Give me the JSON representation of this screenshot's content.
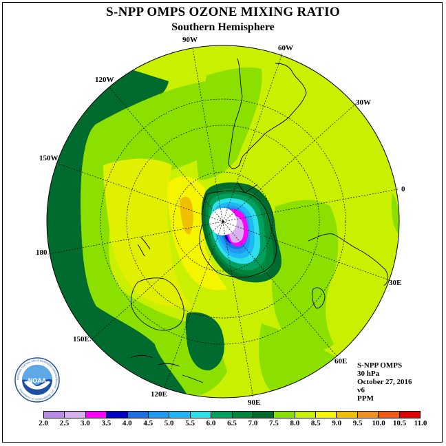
{
  "header": {
    "title": "S-NPP OMPS OZONE MIXING RATIO",
    "subtitle": "Southern Hemisphere"
  },
  "map": {
    "projection": "polar-stereographic-south",
    "longitude_labels": [
      "90W",
      "60W",
      "30W",
      "0",
      "30E",
      "60E",
      "90E",
      "120E",
      "150E",
      "180",
      "150W",
      "120W"
    ]
  },
  "info": {
    "instrument": "S-NPP OMPS",
    "level": "30 hPa",
    "date": "October 27, 2016",
    "version": "v6",
    "units": "PPM"
  },
  "logo": {
    "text": "NOAA",
    "ring_text": "NATIONAL OCEANIC AND ATMOSPHERIC ADMINISTRATION · U.S. DEPARTMENT OF COMMERCE"
  },
  "colorbar": {
    "ticks": [
      "2.0",
      "2.5",
      "3.0",
      "3.5",
      "4.0",
      "4.5",
      "5.0",
      "5.5",
      "6.0",
      "6.5",
      "7.0",
      "7.5",
      "8.0",
      "8.5",
      "9.0",
      "9.5",
      "10.0",
      "10.5",
      "11.0"
    ],
    "colors": [
      "#b98ae8",
      "#d9b1f0",
      "#ff00ff",
      "#0000c8",
      "#1e6fe6",
      "#1f9af0",
      "#1fb8f5",
      "#2ee0ea",
      "#00a060",
      "#00853c",
      "#006b2e",
      "#8be000",
      "#c8f000",
      "#f5f500",
      "#f0c000",
      "#f09020",
      "#f05a14",
      "#e00000",
      "#8b5a2b"
    ]
  }
}
